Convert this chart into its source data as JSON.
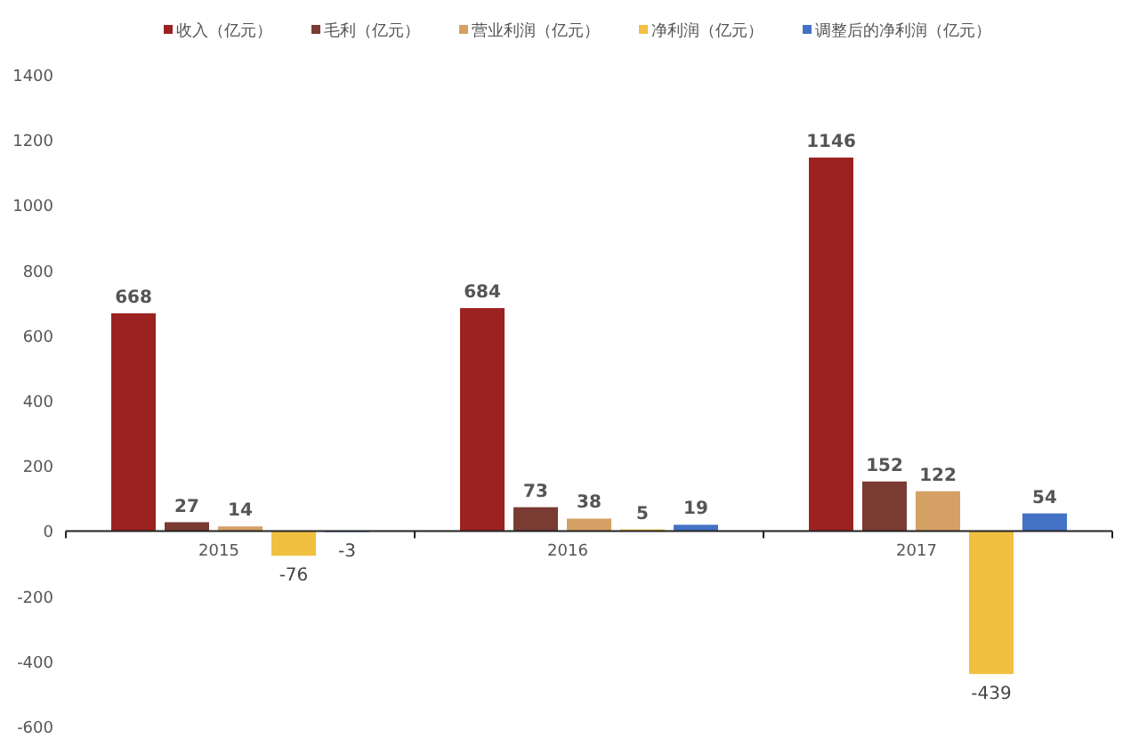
{
  "chart_data": {
    "type": "bar",
    "categories": [
      "2015",
      "2016",
      "2017"
    ],
    "series": [
      {
        "name": "收入（亿元）",
        "color": "#9b2220",
        "values": [
          668,
          684,
          1146
        ]
      },
      {
        "name": "毛利（亿元）",
        "color": "#7a3b33",
        "values": [
          27,
          73,
          152
        ]
      },
      {
        "name": "营业利润（亿元）",
        "color": "#d4a064",
        "values": [
          14,
          38,
          122
        ]
      },
      {
        "name": "净利润（亿元）",
        "color": "#f2c040",
        "values": [
          -76,
          5,
          -439
        ]
      },
      {
        "name": "调整后的净利润（亿元）",
        "color": "#4472c4",
        "values": [
          -3,
          19,
          54
        ]
      }
    ],
    "ylim": [
      -600,
      1400
    ],
    "yticks": [
      -600,
      -400,
      -200,
      0,
      200,
      400,
      600,
      800,
      1000,
      1200,
      1400
    ],
    "data_labels": true,
    "legend": "top",
    "grid": false
  }
}
